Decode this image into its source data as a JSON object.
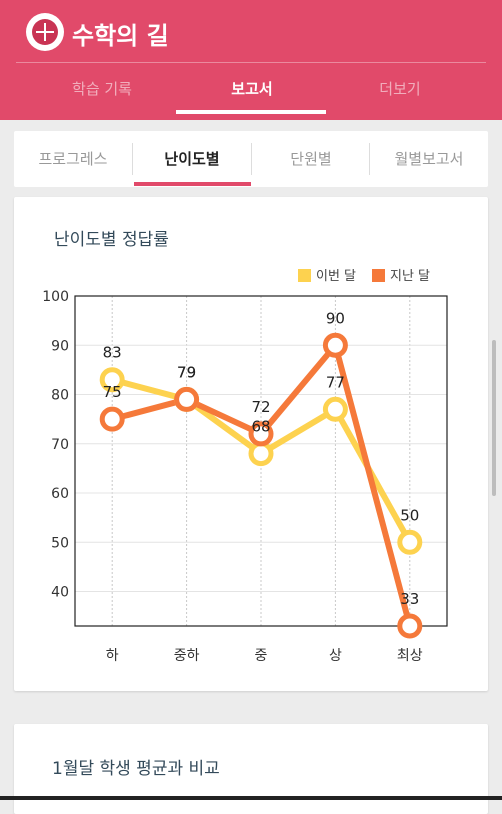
{
  "app": {
    "title": "수학의 길",
    "brand_color": "#e14a6a"
  },
  "top_tabs": [
    {
      "label": "학습 기록",
      "active": false
    },
    {
      "label": "보고서",
      "active": true
    },
    {
      "label": "더보기",
      "active": false
    }
  ],
  "sub_tabs": [
    {
      "label": "프로그레스",
      "active": false
    },
    {
      "label": "난이도별",
      "active": true
    },
    {
      "label": "단원별",
      "active": false
    },
    {
      "label": "월별보고서",
      "active": false
    }
  ],
  "card": {
    "title": "난이도별 정답률"
  },
  "card2": {
    "title": "1월달 학생 평균과 비교"
  },
  "chart_data": {
    "type": "line",
    "categories": [
      "하",
      "중하",
      "중",
      "상",
      "최상"
    ],
    "series": [
      {
        "name": "이번 달",
        "values": [
          83,
          79,
          68,
          77,
          50
        ],
        "color": "#fdd24f"
      },
      {
        "name": "지난 달",
        "values": [
          75,
          79,
          72,
          90,
          33
        ],
        "color": "#f5793a"
      }
    ],
    "ylim": [
      33,
      100
    ],
    "yticks": [
      40,
      50,
      60,
      70,
      80,
      90,
      100
    ],
    "legend_position": "top-right",
    "grid": true
  }
}
